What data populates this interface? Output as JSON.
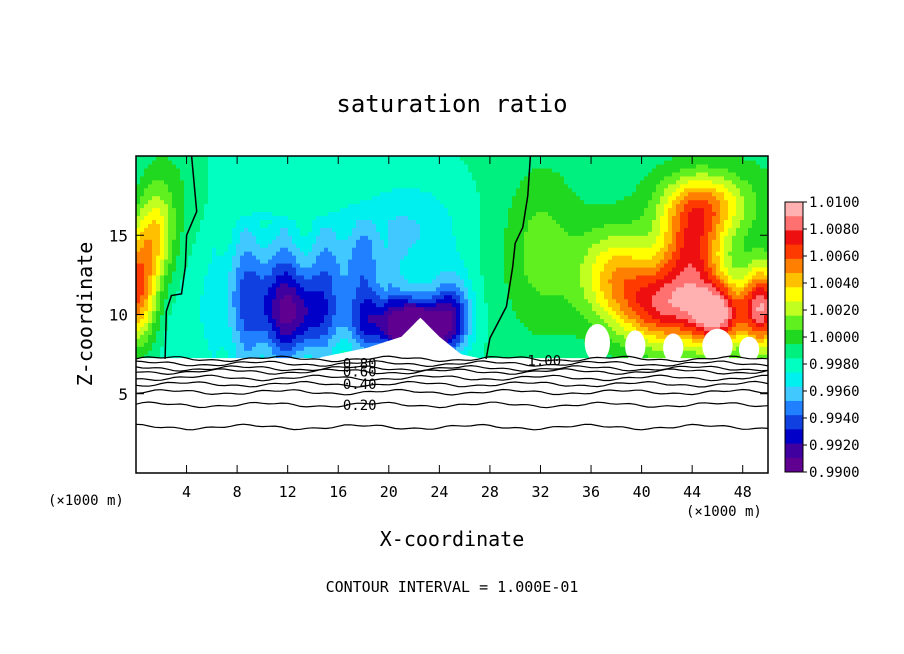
{
  "chart_data": {
    "type": "heatmap",
    "title": "saturation ratio",
    "xlabel": "X-coordinate",
    "ylabel": "Z-coordinate",
    "x_unit_left": "(×1000 m)",
    "x_unit_right": "(×1000 m)",
    "footer": "CONTOUR INTERVAL = 1.000E-01",
    "xlim": [
      0,
      50
    ],
    "ylim": [
      0,
      20
    ],
    "x_ticks": [
      4,
      8,
      12,
      16,
      20,
      24,
      28,
      32,
      36,
      40,
      44,
      48
    ],
    "y_ticks": [
      5,
      10,
      15
    ],
    "colorbar": {
      "labels": [
        "1.0100",
        "1.0080",
        "1.0060",
        "1.0040",
        "1.0020",
        "1.0000",
        "0.9980",
        "0.9960",
        "0.9940",
        "0.9920",
        "0.9900"
      ],
      "colors": [
        "#ffb0b0",
        "#ff7070",
        "#ee1010",
        "#ff3a00",
        "#ff8000",
        "#ffc000",
        "#ffff00",
        "#c0ff20",
        "#60f020",
        "#20d820",
        "#00f080",
        "#00ffc0",
        "#00f0f0",
        "#40c8ff",
        "#2080ff",
        "#1040e0",
        "#0000c8",
        "#4000a0",
        "#600090"
      ],
      "range": [
        0.99,
        1.01
      ]
    },
    "contour_labels": [
      {
        "text": "0.80",
        "x": 17.7,
        "y": 6.9
      },
      {
        "text": "0.60",
        "x": 17.7,
        "y": 6.4
      },
      {
        "text": "0.40",
        "x": 17.7,
        "y": 5.6
      },
      {
        "text": "0.20",
        "x": 17.7,
        "y": 4.3
      },
      {
        "text": "1.00",
        "x": 32.3,
        "y": 7.1
      }
    ],
    "ground_contour_levels": [
      0.9,
      0.8,
      0.7,
      0.6,
      0.5,
      0.4,
      0.3,
      0.2,
      0.1
    ],
    "ground_contour_heights": [
      7.2,
      6.9,
      6.6,
      6.4,
      6.0,
      5.6,
      5.1,
      4.3,
      2.9
    ],
    "field_blobs": [
      {
        "x": 2.5,
        "z": 18.0,
        "sx": 3.0,
        "sz": 5.0,
        "v": 1.0002
      },
      {
        "x": 0.0,
        "z": 11.5,
        "sx": 1.6,
        "sz": 3.5,
        "v": 1.0065
      },
      {
        "x": 1.5,
        "z": 15.0,
        "sx": 1.5,
        "sz": 3.0,
        "v": 1.0028
      },
      {
        "x": 10.0,
        "z": 11.0,
        "sx": 3.5,
        "sz": 4.0,
        "v": 0.9942
      },
      {
        "x": 13.0,
        "z": 10.0,
        "sx": 2.5,
        "sz": 2.5,
        "v": 0.9938
      },
      {
        "x": 17.0,
        "z": 13.0,
        "sx": 3.5,
        "sz": 3.0,
        "v": 0.9955
      },
      {
        "x": 20.0,
        "z": 9.5,
        "sx": 3.5,
        "sz": 2.0,
        "v": 0.9925
      },
      {
        "x": 22.5,
        "z": 9.0,
        "sx": 2.0,
        "sz": 1.6,
        "v": 0.9905
      },
      {
        "x": 25.0,
        "z": 10.0,
        "sx": 1.6,
        "sz": 2.5,
        "v": 0.993
      },
      {
        "x": 22.0,
        "z": 15.5,
        "sx": 4.0,
        "sz": 3.0,
        "v": 0.9965
      },
      {
        "x": 32.0,
        "z": 14.0,
        "sx": 3.0,
        "sz": 5.0,
        "v": 1.0008
      },
      {
        "x": 42.0,
        "z": 10.5,
        "sx": 3.5,
        "sz": 2.5,
        "v": 1.0065
      },
      {
        "x": 44.0,
        "z": 14.0,
        "sx": 2.5,
        "sz": 3.0,
        "v": 1.0055
      },
      {
        "x": 46.0,
        "z": 10.0,
        "sx": 2.0,
        "sz": 2.0,
        "v": 1.0075
      },
      {
        "x": 49.5,
        "z": 10.5,
        "sx": 1.5,
        "sz": 2.5,
        "v": 1.0078
      },
      {
        "x": 45.0,
        "z": 17.0,
        "sx": 3.5,
        "sz": 2.0,
        "v": 1.0035
      },
      {
        "x": 38.0,
        "z": 12.5,
        "sx": 3.0,
        "sz": 3.0,
        "v": 1.0035
      }
    ],
    "ridge_path": [
      [
        14.6,
        7.3
      ],
      [
        18.3,
        7.9
      ],
      [
        21.0,
        8.6
      ],
      [
        22.5,
        9.8
      ],
      [
        24.0,
        8.6
      ],
      [
        25.7,
        7.5
      ],
      [
        27.4,
        7.2
      ]
    ],
    "contour_1_left": [
      [
        2.3,
        7.2
      ],
      [
        2.4,
        10.2
      ],
      [
        2.8,
        11.2
      ],
      [
        3.6,
        11.3
      ],
      [
        3.9,
        13.0
      ],
      [
        4.0,
        15.0
      ],
      [
        4.8,
        16.5
      ],
      [
        4.4,
        20.0
      ]
    ],
    "contour_1_right": [
      [
        27.7,
        7.2
      ],
      [
        28.0,
        8.5
      ],
      [
        29.3,
        10.5
      ],
      [
        29.8,
        13.0
      ],
      [
        30.0,
        14.5
      ],
      [
        30.6,
        15.5
      ],
      [
        31.0,
        17.5
      ],
      [
        31.2,
        20.0
      ]
    ]
  }
}
